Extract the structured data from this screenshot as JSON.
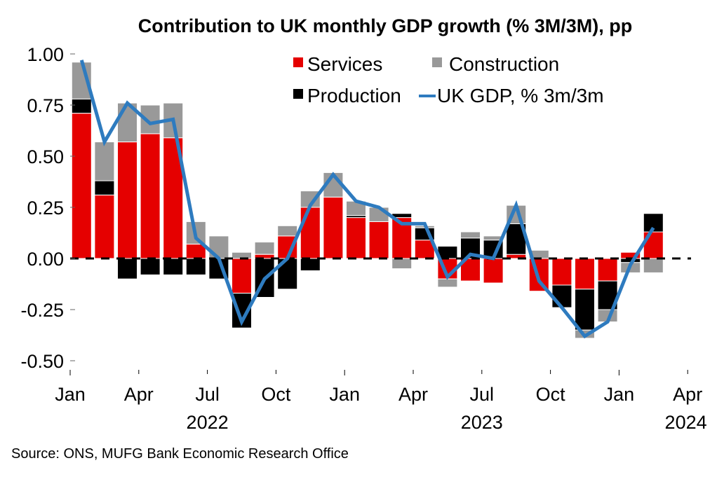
{
  "chart_data": {
    "type": "bar",
    "stacked": true,
    "title": "Contribution to UK monthly GDP growth (% 3M/3M), pp",
    "xlabel": "",
    "ylabel": "",
    "ylim": [
      -0.5,
      1.0
    ],
    "yticks": [
      1.0,
      0.75,
      0.5,
      0.25,
      0.0,
      -0.25,
      -0.5
    ],
    "ytick_labels": [
      "1.00",
      "0.75",
      "0.50",
      "0.25",
      "0.00",
      "-0.25",
      "-0.50"
    ],
    "x_ticks": [
      {
        "label": "Jan",
        "month": "2022-01"
      },
      {
        "label": "Apr",
        "month": "2022-04"
      },
      {
        "label": "Jul",
        "month": "2022-07"
      },
      {
        "label": "Oct",
        "month": "2022-10"
      },
      {
        "label": "Jan",
        "month": "2023-01"
      },
      {
        "label": "Apr",
        "month": "2023-04"
      },
      {
        "label": "Jul",
        "month": "2023-07"
      },
      {
        "label": "Oct",
        "month": "2023-10"
      },
      {
        "label": "Jan",
        "month": "2024-01"
      },
      {
        "label": "Apr",
        "month": "2024-04"
      }
    ],
    "year_labels": [
      {
        "label": "2022",
        "month": "2022-07"
      },
      {
        "label": "2023",
        "month": "2023-07"
      },
      {
        "label": "2024",
        "month": "2024-03"
      }
    ],
    "categories": [
      "2022-01",
      "2022-02",
      "2022-03",
      "2022-04",
      "2022-05",
      "2022-06",
      "2022-07",
      "2022-08",
      "2022-09",
      "2022-10",
      "2022-11",
      "2022-12",
      "2023-01",
      "2023-02",
      "2023-03",
      "2023-04",
      "2023-05",
      "2023-06",
      "2023-07",
      "2023-08",
      "2023-09",
      "2023-10",
      "2023-11",
      "2023-12",
      "2024-01",
      "2024-02"
    ],
    "series": [
      {
        "name": "Services",
        "kind": "bar",
        "color": "#e50000",
        "values": [
          0.71,
          0.31,
          0.57,
          0.61,
          0.59,
          0.07,
          0.0,
          -0.17,
          0.02,
          0.11,
          0.25,
          0.3,
          0.2,
          0.18,
          0.2,
          0.09,
          -0.1,
          -0.11,
          -0.12,
          0.02,
          -0.16,
          -0.13,
          -0.15,
          -0.11,
          0.03,
          0.13
        ]
      },
      {
        "name": "Production",
        "kind": "bar",
        "color": "#000000",
        "values": [
          0.07,
          0.07,
          -0.1,
          -0.08,
          -0.08,
          -0.08,
          -0.1,
          -0.17,
          -0.19,
          -0.15,
          -0.06,
          0.0,
          0.01,
          0.0,
          0.02,
          0.06,
          0.06,
          0.1,
          0.09,
          0.15,
          0.0,
          -0.11,
          -0.2,
          -0.14,
          -0.02,
          0.09
        ]
      },
      {
        "name": "Construction",
        "kind": "bar",
        "color": "#999999",
        "values": [
          0.18,
          0.19,
          0.19,
          0.14,
          0.17,
          0.11,
          0.11,
          0.03,
          0.06,
          0.05,
          0.08,
          0.12,
          0.07,
          0.07,
          -0.05,
          0.01,
          -0.04,
          0.03,
          0.02,
          0.09,
          0.04,
          0.0,
          -0.04,
          -0.06,
          -0.05,
          -0.07
        ]
      },
      {
        "name": "UK GDP, % 3m/3m",
        "kind": "line",
        "color": "#2e7bbf",
        "values": [
          0.97,
          0.57,
          0.76,
          0.66,
          0.68,
          0.1,
          0.0,
          -0.31,
          -0.1,
          0.0,
          0.26,
          0.41,
          0.28,
          0.25,
          0.17,
          0.17,
          -0.09,
          0.02,
          0.0,
          0.26,
          -0.11,
          -0.24,
          -0.38,
          -0.31,
          -0.03,
          0.15
        ]
      }
    ],
    "legend": {
      "placement": "top-right",
      "items": [
        {
          "label": "Services",
          "color": "#e50000",
          "marker": "square"
        },
        {
          "label": "Construction",
          "color": "#999999",
          "marker": "square"
        },
        {
          "label": "Production",
          "color": "#000000",
          "marker": "square"
        },
        {
          "label": "UK GDP, % 3m/3m",
          "color": "#2e7bbf",
          "marker": "line"
        }
      ]
    },
    "zero_line": "dashed",
    "grid": false,
    "source": "Source: ONS, MUFG Bank Economic Research Office"
  }
}
